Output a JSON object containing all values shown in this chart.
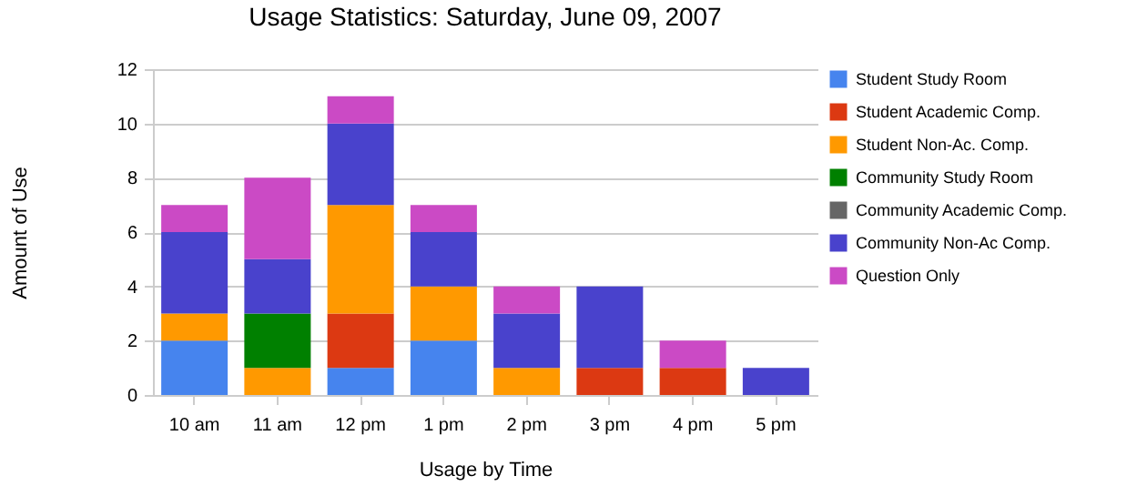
{
  "chart_data": {
    "type": "bar",
    "stacked": true,
    "title": "Usage Statistics: Saturday, June 09, 2007",
    "xlabel": "Usage by Time",
    "ylabel": "Amount of Use",
    "categories": [
      "10 am",
      "11 am",
      "12 pm",
      "1 pm",
      "2 pm",
      "3 pm",
      "4 pm",
      "5 pm"
    ],
    "series": [
      {
        "name": "Student Study Room",
        "color": "#4684ee",
        "values": [
          2,
          0,
          1,
          2,
          0,
          0,
          0,
          0
        ]
      },
      {
        "name": "Student Academic Comp.",
        "color": "#dc3912",
        "values": [
          0,
          0,
          2,
          0,
          0,
          1,
          1,
          0
        ]
      },
      {
        "name": "Student Non-Ac. Comp.",
        "color": "#ff9900",
        "values": [
          1,
          1,
          4,
          2,
          1,
          0,
          0,
          0
        ]
      },
      {
        "name": "Community Study Room",
        "color": "#008000",
        "values": [
          0,
          2,
          0,
          0,
          0,
          0,
          0,
          0
        ]
      },
      {
        "name": "Community Academic Comp.",
        "color": "#666666",
        "values": [
          0,
          0,
          0,
          0,
          0,
          0,
          0,
          0
        ]
      },
      {
        "name": "Community Non-Ac Comp.",
        "color": "#4942cc",
        "values": [
          3,
          2,
          3,
          2,
          2,
          3,
          0,
          1
        ]
      },
      {
        "name": "Question Only",
        "color": "#cb4ac5",
        "values": [
          1,
          3,
          1,
          1,
          1,
          0,
          1,
          0
        ]
      }
    ],
    "ylim": [
      0,
      12
    ],
    "yticks": [
      0,
      2,
      4,
      6,
      8,
      10,
      12
    ],
    "grid": "y",
    "legend": "right"
  }
}
